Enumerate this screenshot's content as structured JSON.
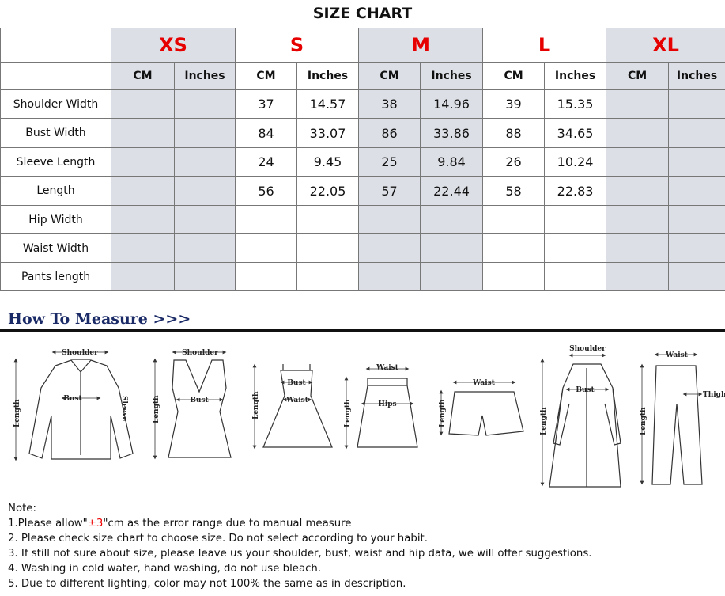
{
  "header": {
    "title": "SIZE CHART"
  },
  "table": {
    "sizes": [
      "XS",
      "S",
      "M",
      "L",
      "XL"
    ],
    "units": [
      "CM",
      "Inches"
    ],
    "rows": [
      {
        "label": "Shoulder Width",
        "values": [
          null,
          null,
          37,
          14.57,
          38,
          14.96,
          39,
          15.35,
          null,
          null
        ]
      },
      {
        "label": "Bust Width",
        "values": [
          null,
          null,
          84,
          33.07,
          86,
          33.86,
          88,
          34.65,
          null,
          null
        ]
      },
      {
        "label": "Sleeve Length",
        "values": [
          null,
          null,
          24,
          9.45,
          25,
          9.84,
          26,
          10.24,
          null,
          null
        ]
      },
      {
        "label": "Length",
        "values": [
          null,
          null,
          56,
          22.05,
          57,
          22.44,
          58,
          22.83,
          null,
          null
        ]
      },
      {
        "label": "Hip Width",
        "values": [
          null,
          null,
          null,
          null,
          null,
          null,
          null,
          null,
          null,
          null
        ]
      },
      {
        "label": "Waist Width",
        "values": [
          null,
          null,
          null,
          null,
          null,
          null,
          null,
          null,
          null,
          null
        ]
      },
      {
        "label": "Pants length",
        "values": [
          null,
          null,
          null,
          null,
          null,
          null,
          null,
          null,
          null,
          null
        ]
      }
    ]
  },
  "measure": {
    "title": "How To Measure >>>",
    "labels": {
      "shoulder": "Shoulder",
      "bust": "Bust",
      "sleeve": "Sleeve",
      "length": "Length",
      "waist": "Waist",
      "hips": "Hips",
      "thigh": "Thigh"
    }
  },
  "notes": {
    "heading": "Note:",
    "items": [
      [
        "1.Please allow\"",
        "±3",
        "\"cm as the error range due to manual measure"
      ],
      "2. Please check size chart to choose size. Do not select according to your habit.",
      "3. If still not sure about size, please leave us your shoulder, bust, waist and hip data, we will offer suggestions.",
      "4. Washing in cold water, hand washing, do not use bleach.",
      "5. Due to different lighting, color may not 100% the same as in description."
    ]
  }
}
